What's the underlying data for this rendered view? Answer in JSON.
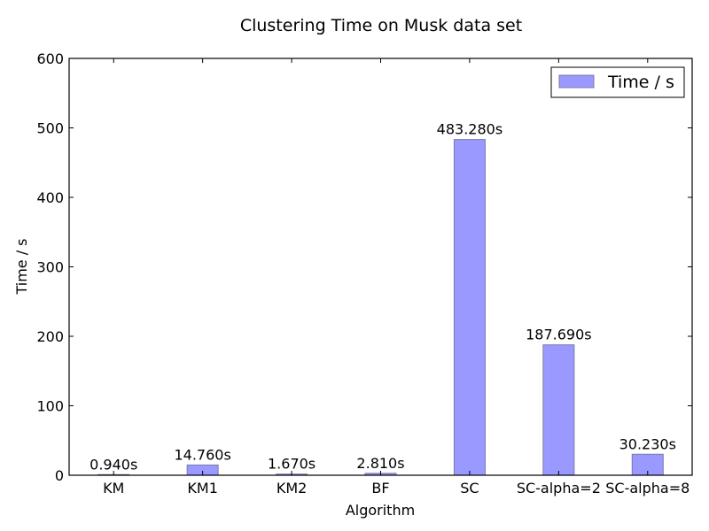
{
  "chart_data": {
    "type": "bar",
    "title": "Clustering Time on Musk data set",
    "xlabel": "Algorithm",
    "ylabel": "Time / s",
    "categories": [
      "KM",
      "KM1",
      "KM2",
      "BF",
      "SC",
      "SC-alpha=2",
      "SC-alpha=8"
    ],
    "series": [
      {
        "name": "Time / s",
        "values": [
          0.94,
          14.76,
          1.67,
          2.81,
          483.28,
          187.69,
          30.23
        ],
        "color": "#9999ff"
      }
    ],
    "data_labels": [
      "0.940s",
      "14.760s",
      "1.670s",
      "2.810s",
      "483.280s",
      "187.690s",
      "30.230s"
    ],
    "ylim": [
      0,
      600
    ],
    "yticks": [
      "0",
      "100",
      "200",
      "300",
      "400",
      "500",
      "600"
    ],
    "grid": false,
    "legend": "top-right",
    "bar_edge_color": "#7a7aa8"
  }
}
